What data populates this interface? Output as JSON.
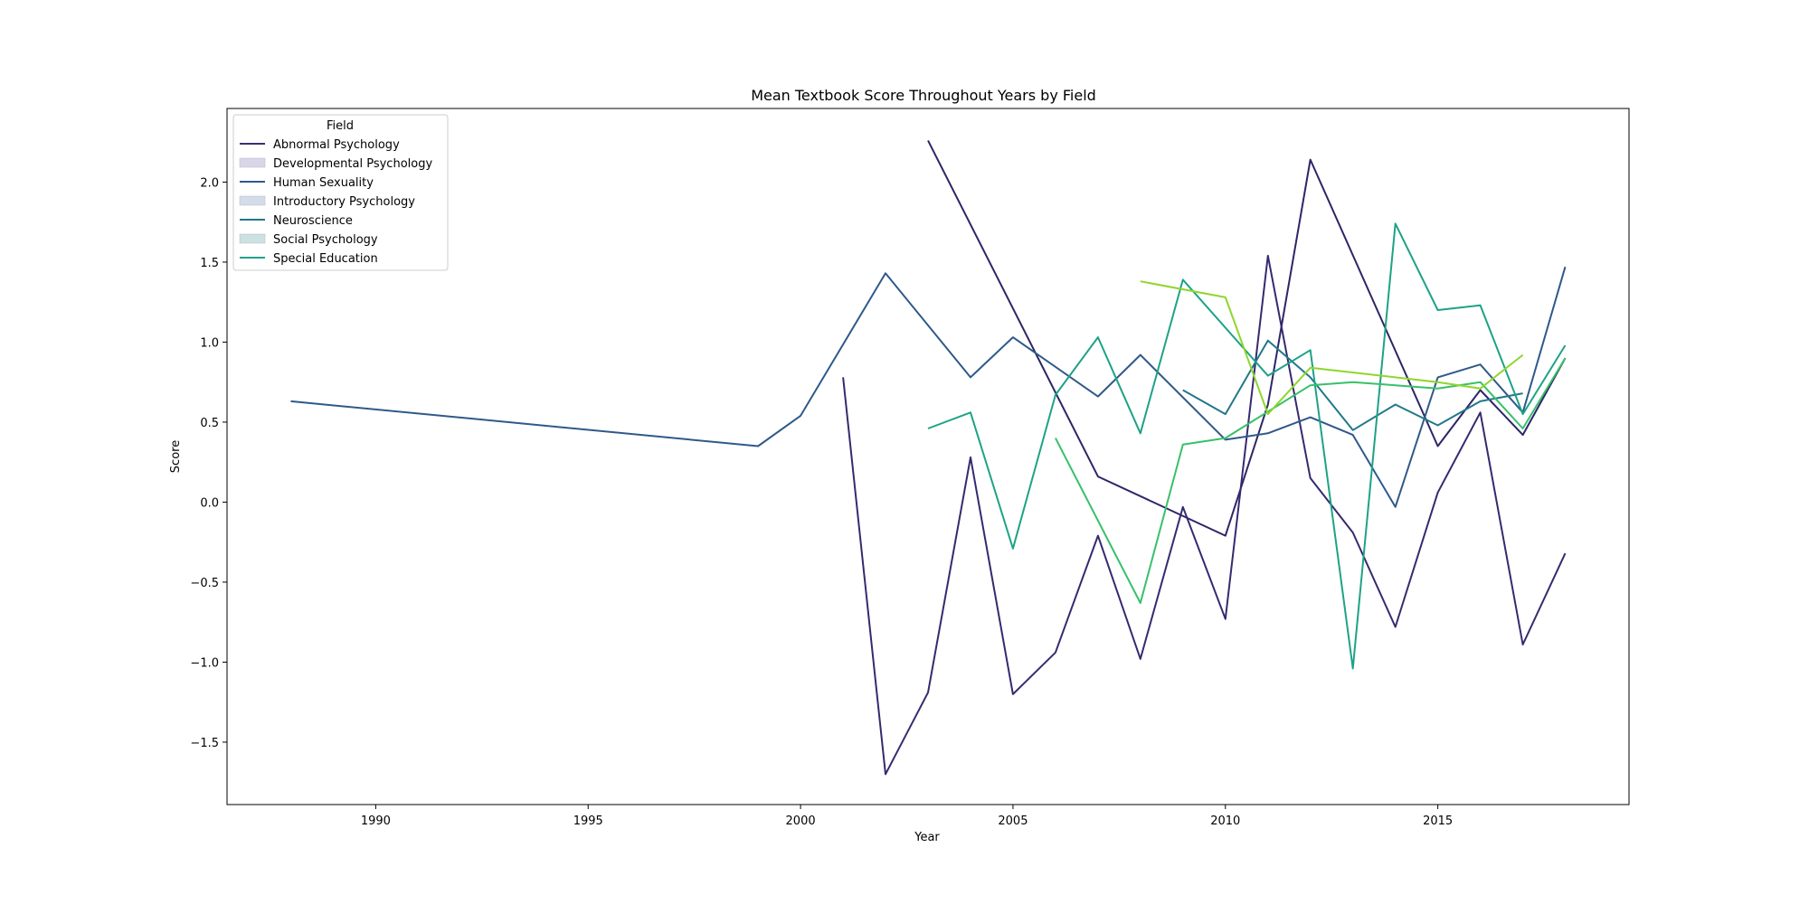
{
  "chart_data": {
    "type": "line",
    "title": "Mean Textbook Score Throughout Years by Field",
    "xlabel": "Year",
    "ylabel": "Score",
    "xlim": [
      1986.5,
      2019.5
    ],
    "ylim": [
      -1.89,
      2.46
    ],
    "xticks": [
      1990,
      1995,
      2000,
      2005,
      2010,
      2015
    ],
    "yticks": [
      -1.5,
      -1.0,
      -0.5,
      0.0,
      0.5,
      1.0,
      1.5,
      2.0
    ],
    "ytick_labels": [
      "−1.5",
      "−1.0",
      "−0.5",
      "0.0",
      "0.5",
      "1.0",
      "1.5",
      "2.0"
    ],
    "grid": false,
    "legend": {
      "title": "Field",
      "placement": "top-left",
      "entries": [
        {
          "label": "Abnormal Psychology",
          "kind": "line",
          "color": "#3b2f73"
        },
        {
          "label": "Developmental Psychology",
          "kind": "patch",
          "color": "#d9d6e8"
        },
        {
          "label": "Human Sexuality",
          "kind": "line",
          "color": "#2f5989"
        },
        {
          "label": "Introductory Psychology",
          "kind": "patch",
          "color": "#d3dde9"
        },
        {
          "label": "Neuroscience",
          "kind": "line",
          "color": "#21788a"
        },
        {
          "label": "Social Psychology",
          "kind": "patch",
          "color": "#cde1e3"
        },
        {
          "label": "Special Education",
          "kind": "line",
          "color": "#1ea287"
        }
      ]
    },
    "series": [
      {
        "color": "#2c2667",
        "x": [
          2003,
          2007,
          2010,
          2011,
          2012,
          2015,
          2016,
          2017,
          2018
        ],
        "y": [
          2.26,
          0.16,
          -0.21,
          0.61,
          2.14,
          0.35,
          0.7,
          0.42,
          0.9
        ]
      },
      {
        "color": "#352a6f",
        "x": [
          2001,
          2002,
          2003,
          2004,
          2005,
          2006,
          2007,
          2008,
          2009,
          2010,
          2011,
          2012,
          2013,
          2014,
          2015,
          2016,
          2017,
          2018
        ],
        "y": [
          0.78,
          -1.7,
          -1.19,
          0.28,
          -1.2,
          -0.94,
          -0.21,
          -0.98,
          -0.03,
          -0.73,
          1.54,
          0.15,
          -0.19,
          -0.78,
          0.06,
          0.56,
          -0.89,
          -0.32
        ]
      },
      {
        "color": "#2f5989",
        "x": [
          1988,
          1999,
          2000,
          2002,
          2004,
          2005,
          2007,
          2008,
          2010,
          2011,
          2012,
          2013,
          2014,
          2015,
          2016,
          2017,
          2018
        ],
        "y": [
          0.63,
          0.35,
          0.54,
          1.43,
          0.78,
          1.03,
          0.66,
          0.92,
          0.39,
          0.43,
          0.53,
          0.42,
          -0.03,
          0.78,
          0.86,
          0.56,
          1.47
        ]
      },
      {
        "color": "#21788a",
        "x": [
          2009,
          2010,
          2011,
          2012,
          2013,
          2014,
          2015,
          2016,
          2017
        ],
        "y": [
          0.7,
          0.55,
          1.01,
          0.78,
          0.45,
          0.61,
          0.48,
          0.63,
          0.68
        ]
      },
      {
        "color": "#1ea287",
        "x": [
          2003,
          2004,
          2005,
          2006,
          2007,
          2008,
          2009,
          2011,
          2012,
          2013,
          2014,
          2015,
          2016,
          2017,
          2018
        ],
        "y": [
          0.46,
          0.56,
          -0.29,
          0.67,
          1.03,
          0.43,
          1.39,
          0.79,
          0.95,
          -1.04,
          1.74,
          1.2,
          1.23,
          0.55,
          0.98
        ]
      },
      {
        "color": "#38c06a",
        "x": [
          2006,
          2008,
          2009,
          2010,
          2012,
          2013,
          2014,
          2015,
          2016,
          2017,
          2018
        ],
        "y": [
          0.4,
          -0.63,
          0.36,
          0.4,
          0.73,
          0.75,
          0.73,
          0.71,
          0.75,
          0.46,
          0.9
        ]
      },
      {
        "color": "#8fd62c",
        "x": [
          2008,
          2010,
          2011,
          2012,
          2015,
          2016,
          2017
        ],
        "y": [
          1.38,
          1.28,
          0.55,
          0.84,
          0.75,
          0.71,
          0.92
        ]
      }
    ]
  }
}
